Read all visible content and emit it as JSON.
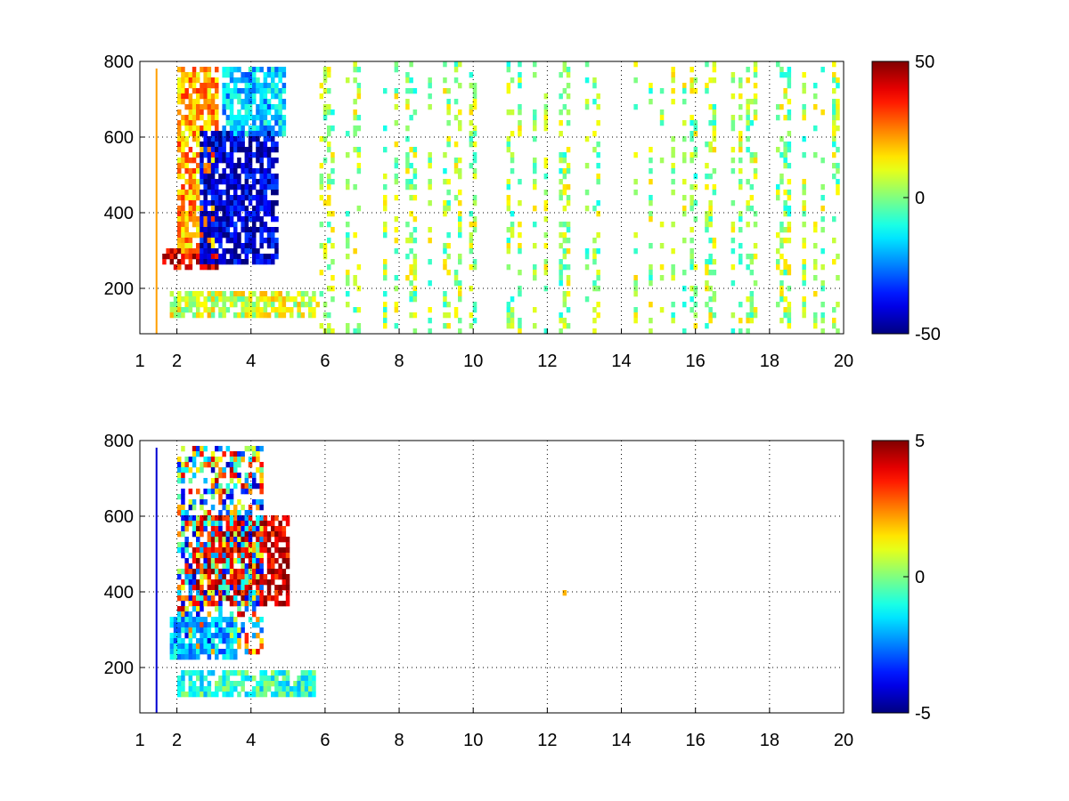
{
  "chart_data": [
    {
      "type": "heatmap",
      "title": "",
      "xlabel": "",
      "ylabel": "",
      "xlim": [
        1,
        20
      ],
      "ylim": [
        80,
        800
      ],
      "xticks": [
        1,
        2,
        4,
        6,
        8,
        10,
        12,
        14,
        16,
        18,
        20
      ],
      "yticks": [
        200,
        400,
        600,
        800
      ],
      "grid": true,
      "colormap": "jet",
      "colorbar": {
        "limits": [
          -50,
          50
        ],
        "ticks": [
          -50,
          0,
          50
        ]
      },
      "features": [
        {
          "name": "warm-band-low",
          "x": [
            1.6,
            3.0
          ],
          "y": [
            260,
            310
          ],
          "value": 40
        },
        {
          "name": "warm-region-upper",
          "x": [
            2.0,
            3.0
          ],
          "y": [
            300,
            780
          ],
          "value": 22
        },
        {
          "name": "cool-diagonal-band",
          "x": [
            2.6,
            4.6
          ],
          "y": [
            280,
            620
          ],
          "value": -42
        },
        {
          "name": "cool-region-upper",
          "x": [
            3.2,
            4.8
          ],
          "y": [
            620,
            790
          ],
          "value": -18
        },
        {
          "name": "low-band",
          "x": [
            1.8,
            5.7
          ],
          "y": [
            130,
            200
          ],
          "value": 8
        },
        {
          "name": "sparse-noise",
          "x": [
            5.8,
            20
          ],
          "y": [
            80,
            800
          ],
          "value": 0
        }
      ]
    },
    {
      "type": "heatmap",
      "title": "",
      "xlabel": "",
      "ylabel": "",
      "xlim": [
        1,
        20
      ],
      "ylim": [
        80,
        800
      ],
      "xticks": [
        1,
        2,
        4,
        6,
        8,
        10,
        12,
        14,
        16,
        18,
        20
      ],
      "yticks": [
        200,
        400,
        600,
        800
      ],
      "grid": true,
      "colormap": "jet",
      "colorbar": {
        "limits": [
          -5,
          5
        ],
        "ticks": [
          -5,
          0,
          5
        ]
      },
      "features": [
        {
          "name": "warm-diagonal-band",
          "x": [
            2.4,
            4.9
          ],
          "y": [
            380,
            610
          ],
          "value": 4.2
        },
        {
          "name": "mixed-cloud",
          "x": [
            2.0,
            4.2
          ],
          "y": [
            250,
            780
          ],
          "value": 0
        },
        {
          "name": "cool-base",
          "x": [
            1.8,
            3.5
          ],
          "y": [
            240,
            340
          ],
          "value": -2
        },
        {
          "name": "low-band",
          "x": [
            2.0,
            5.6
          ],
          "y": [
            130,
            200
          ],
          "value": -0.8
        },
        {
          "name": "isolated-point",
          "x": [
            12.4,
            12.4
          ],
          "y": [
            410,
            410
          ],
          "value": 2
        }
      ]
    }
  ]
}
